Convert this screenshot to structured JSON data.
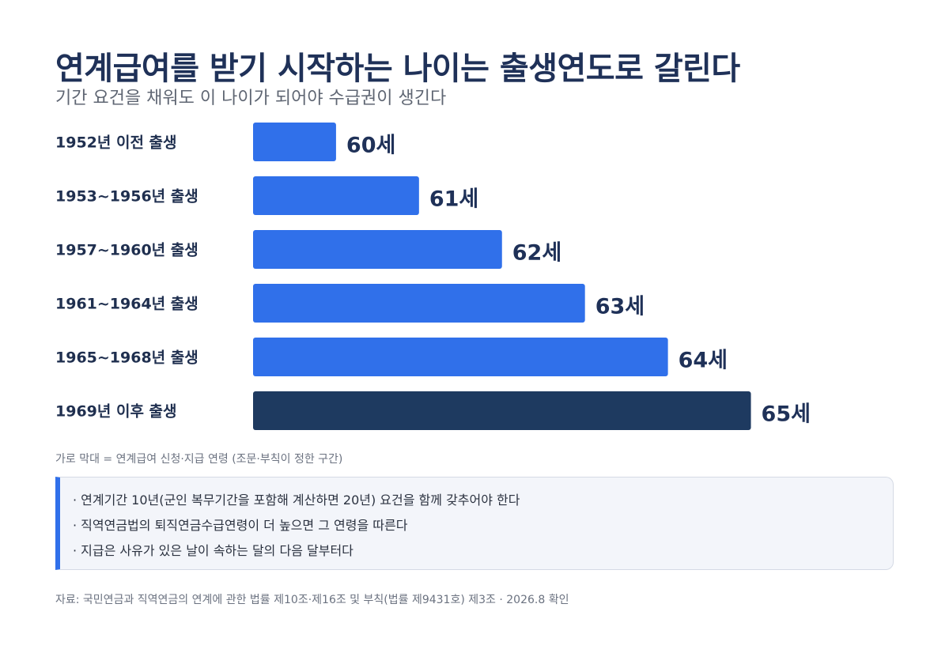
{
  "header": {
    "title": "연계급여를 받기 시작하는 나이는 출생연도로 갈린다",
    "subtitle": "기간 요건을 채워도 이 나이가 되어야 수급권이 생긴다"
  },
  "chart_data": {
    "type": "bar",
    "orientation": "horizontal",
    "categories": [
      "1952년 이전 출생",
      "1953~1956년 출생",
      "1957~1960년 출생",
      "1961~1964년 출생",
      "1965~1968년 출생",
      "1969년 이후 출생"
    ],
    "values": [
      60,
      61,
      62,
      63,
      64,
      65
    ],
    "value_labels": [
      "60세",
      "61세",
      "62세",
      "63세",
      "64세",
      "65세"
    ],
    "xlim": [
      59,
      65.5
    ],
    "colors": [
      "#3070ea",
      "#3070ea",
      "#3070ea",
      "#3070ea",
      "#3070ea",
      "#1e3a60"
    ],
    "grid": false,
    "legend": "none",
    "caption": "가로 막대 = 연계급여 신청·지급 연령 (조문·부칙이 정한 구간)"
  },
  "notes": [
    "· 연계기간 10년(군인 복무기간을 포함해 계산하면 20년) 요건을 함께 갖추어야 한다",
    "· 직역연금법의 퇴직연금수급연령이 더 높으면 그 연령을 따른다",
    "· 지급은 사유가 있은 날이 속하는 달의 다음 달부터다"
  ],
  "footer": {
    "source": "자료: 국민연금과 직역연금의 연계에 관한 법률 제10조·제16조 및 부칙(법률 제9431호) 제3조 · 2026.8 확인"
  }
}
